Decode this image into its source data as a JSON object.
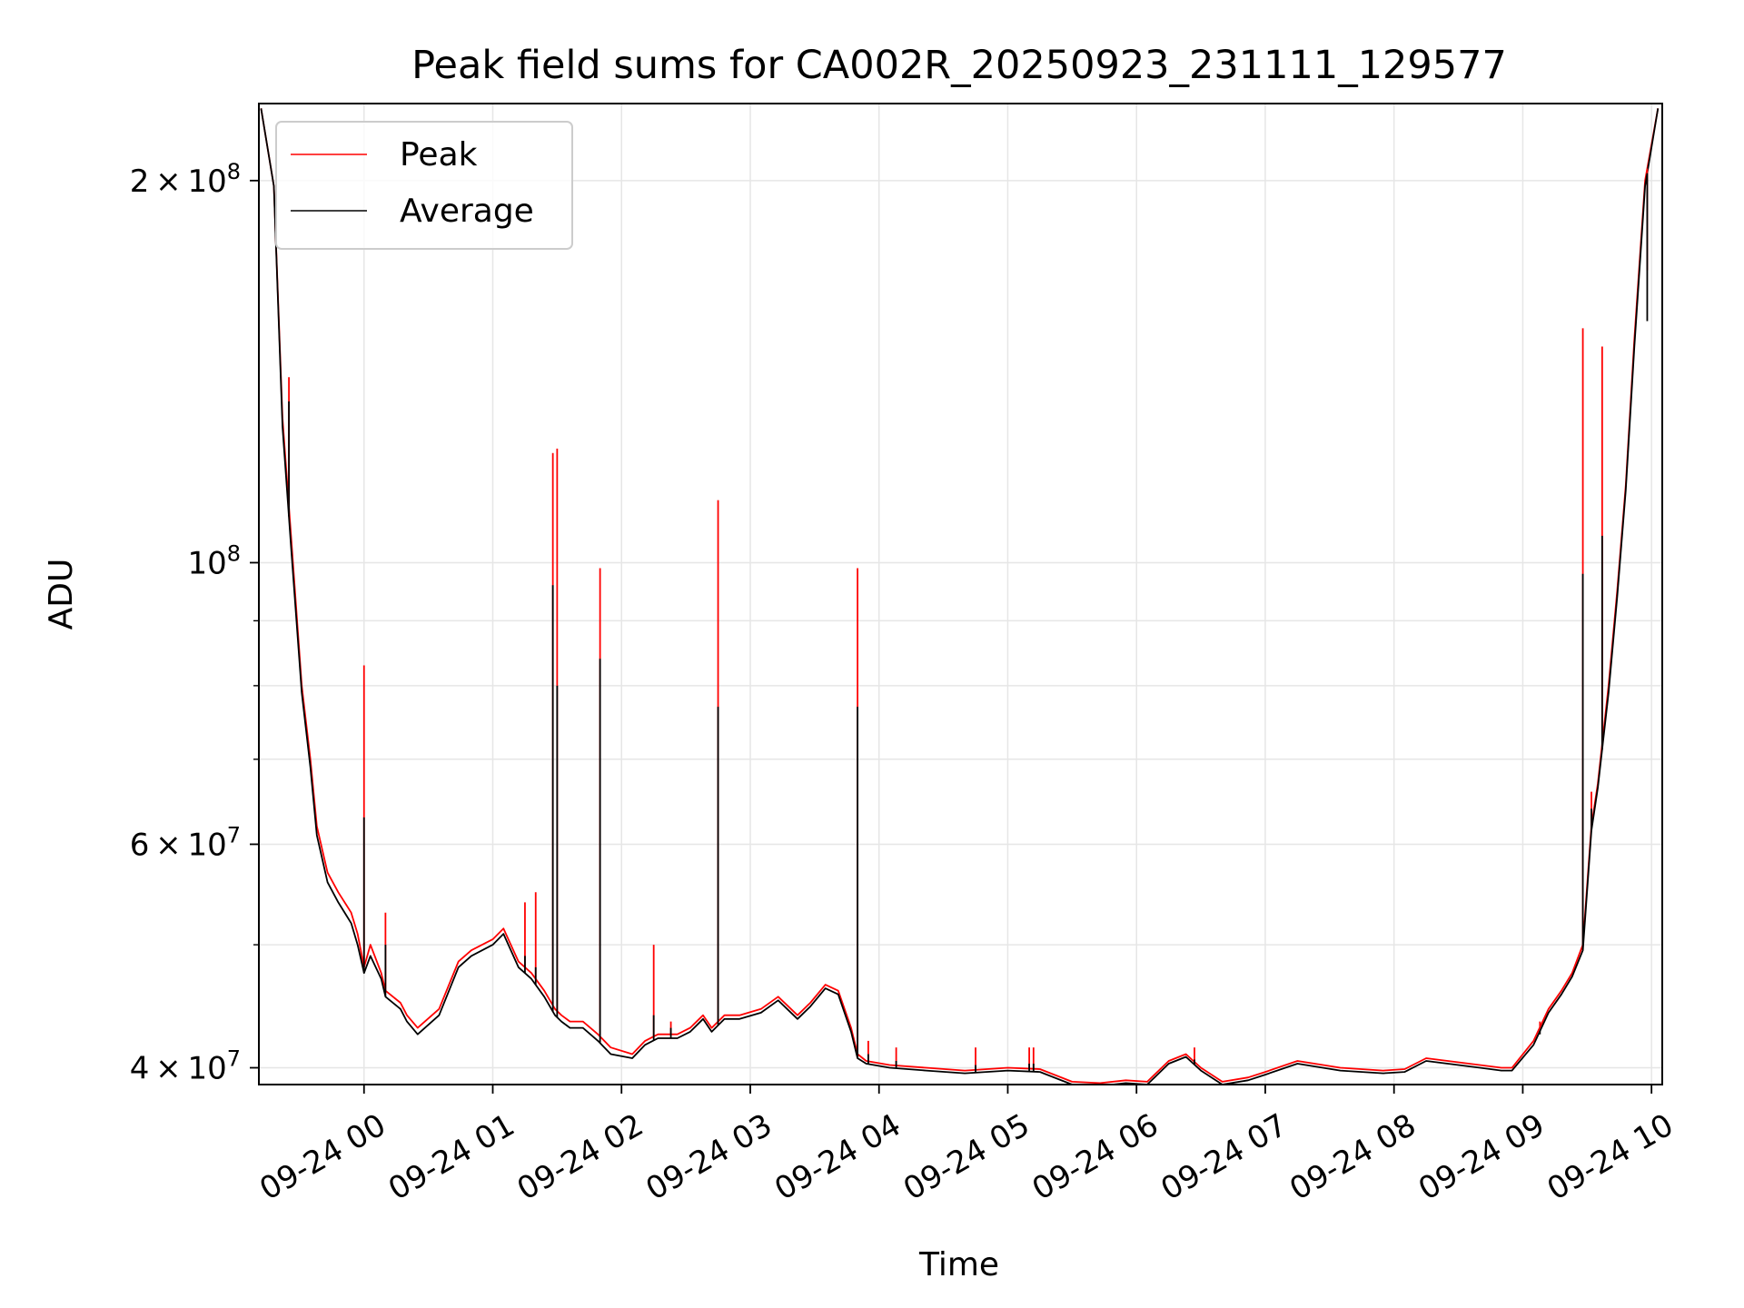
{
  "chart_data": {
    "type": "line",
    "title": "Peak field sums for CA002R_20250923_231111_129577",
    "xlabel": "Time",
    "ylabel": "ADU",
    "yscale": "log",
    "ylim": [
      38800000,
      230000000
    ],
    "xlim": [
      "2025-09-23 23:11",
      "2025-09-24 10:05"
    ],
    "grid": true,
    "legend_position": "upper left",
    "x_tick_labels": [
      "09-24 00",
      "09-24 01",
      "09-24 02",
      "09-24 03",
      "09-24 04",
      "09-24 05",
      "09-24 06",
      "09-24 07",
      "09-24 08",
      "09-24 09",
      "09-24 10"
    ],
    "x_tick_times": [
      "2025-09-24 00:00",
      "2025-09-24 01:00",
      "2025-09-24 02:00",
      "2025-09-24 03:00",
      "2025-09-24 04:00",
      "2025-09-24 05:00",
      "2025-09-24 06:00",
      "2025-09-24 07:00",
      "2025-09-24 08:00",
      "2025-09-24 09:00",
      "2025-09-24 10:00"
    ],
    "y_major_ticks": [
      {
        "value": 40000000,
        "mantissa": "4",
        "exponent": "7"
      },
      {
        "value": 60000000,
        "mantissa": "6",
        "exponent": "7"
      },
      {
        "value": 100000000,
        "mantissa": "",
        "exponent": "8"
      },
      {
        "value": 200000000,
        "mantissa": "2",
        "exponent": "8"
      }
    ],
    "y_minor_ticks": [
      50000000,
      70000000,
      80000000,
      90000000
    ],
    "x": [
      "2025-09-23 23:12",
      "2025-09-23 23:18",
      "2025-09-23 23:22",
      "2025-09-23 23:26",
      "2025-09-23 23:31",
      "2025-09-23 23:35",
      "2025-09-23 23:38",
      "2025-09-23 23:43",
      "2025-09-23 23:48",
      "2025-09-23 23:54",
      "2025-09-23 23:57",
      "2025-09-24 00:00",
      "2025-09-24 00:03",
      "2025-09-24 00:08",
      "2025-09-24 00:10",
      "2025-09-24 00:17",
      "2025-09-24 00:20",
      "2025-09-24 00:25",
      "2025-09-24 00:35",
      "2025-09-24 00:44",
      "2025-09-24 00:50",
      "2025-09-24 01:00",
      "2025-09-24 01:05",
      "2025-09-24 01:12",
      "2025-09-24 01:18",
      "2025-09-24 01:24",
      "2025-09-24 01:29",
      "2025-09-24 01:32",
      "2025-09-24 01:36",
      "2025-09-24 01:42",
      "2025-09-24 01:49",
      "2025-09-24 01:55",
      "2025-09-24 02:05",
      "2025-09-24 02:11",
      "2025-09-24 02:17",
      "2025-09-24 02:26",
      "2025-09-24 02:32",
      "2025-09-24 02:38",
      "2025-09-24 02:42",
      "2025-09-24 02:48",
      "2025-09-24 02:55",
      "2025-09-24 03:05",
      "2025-09-24 03:13",
      "2025-09-24 03:22",
      "2025-09-24 03:28",
      "2025-09-24 03:35",
      "2025-09-24 03:41",
      "2025-09-24 03:47",
      "2025-09-24 03:50",
      "2025-09-24 03:54",
      "2025-09-24 04:05",
      "2025-09-24 04:22",
      "2025-09-24 04:40",
      "2025-09-24 05:00",
      "2025-09-24 05:15",
      "2025-09-24 05:30",
      "2025-09-24 05:43",
      "2025-09-24 05:55",
      "2025-09-24 06:05",
      "2025-09-24 06:15",
      "2025-09-24 06:23",
      "2025-09-24 06:30",
      "2025-09-24 06:40",
      "2025-09-24 06:52",
      "2025-09-24 07:00",
      "2025-09-24 07:15",
      "2025-09-24 07:35",
      "2025-09-24 07:55",
      "2025-09-24 08:05",
      "2025-09-24 08:15",
      "2025-09-24 08:25",
      "2025-09-24 08:40",
      "2025-09-24 08:50",
      "2025-09-24 08:55",
      "2025-09-24 09:05",
      "2025-09-24 09:12",
      "2025-09-24 09:18",
      "2025-09-24 09:23",
      "2025-09-24 09:28",
      "2025-09-24 09:32",
      "2025-09-24 09:35",
      "2025-09-24 09:40",
      "2025-09-24 09:44",
      "2025-09-24 09:48",
      "2025-09-24 09:52",
      "2025-09-24 09:57",
      "2025-09-24 10:03"
    ],
    "series": [
      {
        "name": "Peak",
        "color": "#ff0000",
        "values": [
          228000000,
          198000000,
          130000000,
          105000000,
          80000000,
          70000000,
          62000000,
          57000000,
          55000000,
          53000000,
          51000000,
          48000000,
          50000000,
          47500000,
          46000000,
          45000000,
          44000000,
          43000000,
          44500000,
          48500000,
          49500000,
          50500000,
          51500000,
          48500000,
          47500000,
          46000000,
          44500000,
          44000000,
          43500000,
          43500000,
          42500000,
          41500000,
          41000000,
          42000000,
          42500000,
          42500000,
          43000000,
          44000000,
          43000000,
          44000000,
          44000000,
          44500000,
          45500000,
          44000000,
          45000000,
          46500000,
          46000000,
          43000000,
          41000000,
          40500000,
          40200000,
          40000000,
          39800000,
          40000000,
          39900000,
          39000000,
          38900000,
          39100000,
          39000000,
          40500000,
          41000000,
          40000000,
          39000000,
          39300000,
          39700000,
          40500000,
          40000000,
          39800000,
          39900000,
          40700000,
          40500000,
          40200000,
          40000000,
          40000000,
          42000000,
          44500000,
          46000000,
          47500000,
          50000000,
          62000000,
          67000000,
          80000000,
          95000000,
          115000000,
          150000000,
          200000000,
          228000000
        ]
      },
      {
        "name": "Average",
        "color": "#000000",
        "values": [
          228000000,
          198000000,
          128000000,
          103000000,
          79000000,
          69000000,
          61000000,
          56000000,
          54000000,
          52000000,
          50000000,
          47500000,
          49000000,
          47000000,
          45500000,
          44500000,
          43500000,
          42500000,
          44000000,
          48000000,
          49000000,
          50000000,
          51000000,
          48000000,
          47000000,
          45500000,
          44000000,
          43500000,
          43000000,
          43000000,
          42000000,
          41000000,
          40700000,
          41700000,
          42200000,
          42200000,
          42700000,
          43700000,
          42700000,
          43700000,
          43700000,
          44200000,
          45200000,
          43700000,
          44700000,
          46200000,
          45700000,
          42700000,
          40700000,
          40300000,
          40000000,
          39800000,
          39600000,
          39800000,
          39700000,
          38800000,
          38700000,
          38900000,
          38800000,
          40300000,
          40800000,
          39800000,
          38800000,
          39100000,
          39500000,
          40300000,
          39800000,
          39600000,
          39700000,
          40500000,
          40300000,
          40000000,
          39800000,
          39800000,
          41700000,
          44200000,
          45700000,
          47200000,
          49500000,
          61500000,
          66500000,
          79000000,
          94000000,
          114000000,
          148000000,
          198000000,
          228000000
        ]
      }
    ],
    "peak_spikes": [
      {
        "x": "2025-09-23 23:25",
        "peak": 140000000,
        "average": 134000000
      },
      {
        "x": "2025-09-24 00:00",
        "peak": 83000000,
        "average": 63000000
      },
      {
        "x": "2025-09-24 00:10",
        "peak": 53000000,
        "average": 50000000
      },
      {
        "x": "2025-09-24 01:15",
        "peak": 54000000,
        "average": 49000000
      },
      {
        "x": "2025-09-24 01:20",
        "peak": 55000000,
        "average": 48000000
      },
      {
        "x": "2025-09-24 01:28",
        "peak": 122000000,
        "average": 96000000
      },
      {
        "x": "2025-09-24 01:30",
        "peak": 123000000,
        "average": 80000000
      },
      {
        "x": "2025-09-24 01:50",
        "peak": 99000000,
        "average": 84000000
      },
      {
        "x": "2025-09-24 02:15",
        "peak": 50000000,
        "average": 44000000
      },
      {
        "x": "2025-09-24 02:23",
        "peak": 43500000,
        "average": 43000000
      },
      {
        "x": "2025-09-24 02:45",
        "peak": 112000000,
        "average": 77000000
      },
      {
        "x": "2025-09-24 03:50",
        "peak": 99000000,
        "average": 77000000
      },
      {
        "x": "2025-09-24 03:55",
        "peak": 42000000,
        "average": 41000000
      },
      {
        "x": "2025-09-24 04:08",
        "peak": 41500000,
        "average": 40500000
      },
      {
        "x": "2025-09-24 04:45",
        "peak": 41500000,
        "average": 40200000
      },
      {
        "x": "2025-09-24 05:10",
        "peak": 41500000,
        "average": 40300000
      },
      {
        "x": "2025-09-24 05:12",
        "peak": 41500000,
        "average": 40300000
      },
      {
        "x": "2025-09-24 06:27",
        "peak": 41500000,
        "average": 40600000
      },
      {
        "x": "2025-09-24 09:08",
        "peak": 43500000,
        "average": 42500000
      },
      {
        "x": "2025-09-24 09:28",
        "peak": 153000000,
        "average": 98000000
      },
      {
        "x": "2025-09-24 09:37",
        "peak": 148000000,
        "average": 105000000
      },
      {
        "x": "2025-09-24 09:32",
        "peak": 66000000,
        "average": 64000000
      },
      {
        "x": "2025-09-24 09:58",
        "peak": 170000000,
        "average": 155000000
      }
    ]
  }
}
